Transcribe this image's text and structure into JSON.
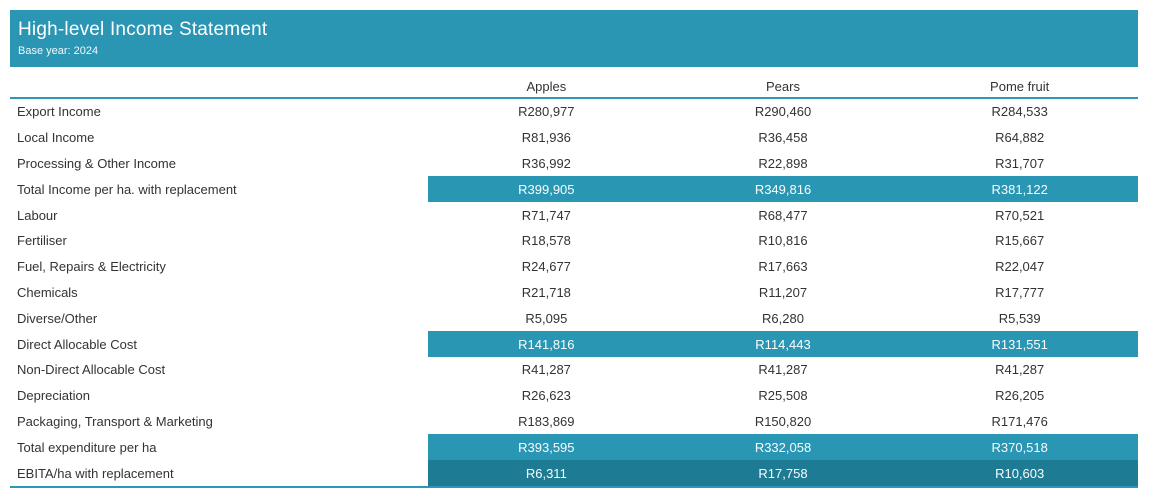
{
  "header": {
    "title": "High-level Income Statement",
    "subtitle": "Base year: 2024"
  },
  "colors": {
    "banner": "#2B96B4",
    "highlight_row": "#2996B3",
    "highlight_row_dark": "#1E7B94",
    "rule_line": "#2E97B5",
    "body_text": "#333333",
    "highlight_text": "#FAFDFD"
  },
  "table": {
    "columns": [
      "Apples",
      "Pears",
      "Pome fruit"
    ],
    "rows": [
      {
        "label": "Export Income",
        "values": [
          "R280,977",
          "R290,460",
          "R284,533"
        ],
        "style": "normal"
      },
      {
        "label": "Local Income",
        "values": [
          "R81,936",
          "R36,458",
          "R64,882"
        ],
        "style": "normal"
      },
      {
        "label": "Processing & Other Income",
        "values": [
          "R36,992",
          "R22,898",
          "R31,707"
        ],
        "style": "normal"
      },
      {
        "label": "Total Income per ha. with replacement",
        "values": [
          "R399,905",
          "R349,816",
          "R381,122"
        ],
        "style": "highlight"
      },
      {
        "label": "Labour",
        "values": [
          "R71,747",
          "R68,477",
          "R70,521"
        ],
        "style": "normal"
      },
      {
        "label": "Fertiliser",
        "values": [
          "R18,578",
          "R10,816",
          "R15,667"
        ],
        "style": "normal"
      },
      {
        "label": "Fuel, Repairs & Electricity",
        "values": [
          "R24,677",
          "R17,663",
          "R22,047"
        ],
        "style": "normal"
      },
      {
        "label": "Chemicals",
        "values": [
          "R21,718",
          "R11,207",
          "R17,777"
        ],
        "style": "normal"
      },
      {
        "label": "Diverse/Other",
        "values": [
          "R5,095",
          "R6,280",
          "R5,539"
        ],
        "style": "normal"
      },
      {
        "label": "Direct Allocable Cost",
        "values": [
          "R141,816",
          "R114,443",
          "R131,551"
        ],
        "style": "highlight"
      },
      {
        "label": "Non-Direct Allocable Cost",
        "values": [
          "R41,287",
          "R41,287",
          "R41,287"
        ],
        "style": "normal"
      },
      {
        "label": "Depreciation",
        "values": [
          "R26,623",
          "R25,508",
          "R26,205"
        ],
        "style": "normal"
      },
      {
        "label": "Packaging, Transport & Marketing",
        "values": [
          "R183,869",
          "R150,820",
          "R171,476"
        ],
        "style": "normal"
      },
      {
        "label": "Total expenditure per ha",
        "values": [
          "R393,595",
          "R332,058",
          "R370,518"
        ],
        "style": "highlight"
      },
      {
        "label": "EBITA/ha with replacement",
        "values": [
          "R6,311",
          "R17,758",
          "R10,603"
        ],
        "style": "highlight-dark"
      }
    ]
  },
  "chart_data": {
    "type": "table",
    "title": "High-level Income Statement",
    "subtitle": "Base year: 2024",
    "currency": "ZAR (R)",
    "columns": [
      "Apples",
      "Pears",
      "Pome fruit"
    ],
    "rows": [
      {
        "label": "Export Income",
        "values": [
          280977,
          290460,
          284533
        ],
        "emphasis": false
      },
      {
        "label": "Local Income",
        "values": [
          81936,
          36458,
          64882
        ],
        "emphasis": false
      },
      {
        "label": "Processing & Other Income",
        "values": [
          36992,
          22898,
          31707
        ],
        "emphasis": false
      },
      {
        "label": "Total Income per ha. with replacement",
        "values": [
          399905,
          349816,
          381122
        ],
        "emphasis": true
      },
      {
        "label": "Labour",
        "values": [
          71747,
          68477,
          70521
        ],
        "emphasis": false
      },
      {
        "label": "Fertiliser",
        "values": [
          18578,
          10816,
          15667
        ],
        "emphasis": false
      },
      {
        "label": "Fuel, Repairs & Electricity",
        "values": [
          24677,
          17663,
          22047
        ],
        "emphasis": false
      },
      {
        "label": "Chemicals",
        "values": [
          21718,
          11207,
          17777
        ],
        "emphasis": false
      },
      {
        "label": "Diverse/Other",
        "values": [
          5095,
          6280,
          5539
        ],
        "emphasis": false
      },
      {
        "label": "Direct Allocable Cost",
        "values": [
          141816,
          114443,
          131551
        ],
        "emphasis": true
      },
      {
        "label": "Non-Direct Allocable Cost",
        "values": [
          41287,
          41287,
          41287
        ],
        "emphasis": false
      },
      {
        "label": "Depreciation",
        "values": [
          26623,
          25508,
          26205
        ],
        "emphasis": false
      },
      {
        "label": "Packaging, Transport & Marketing",
        "values": [
          183869,
          150820,
          171476
        ],
        "emphasis": false
      },
      {
        "label": "Total expenditure per ha",
        "values": [
          393595,
          332058,
          370518
        ],
        "emphasis": true
      },
      {
        "label": "EBITA/ha with replacement",
        "values": [
          6311,
          17758,
          10603
        ],
        "emphasis": true
      }
    ]
  }
}
